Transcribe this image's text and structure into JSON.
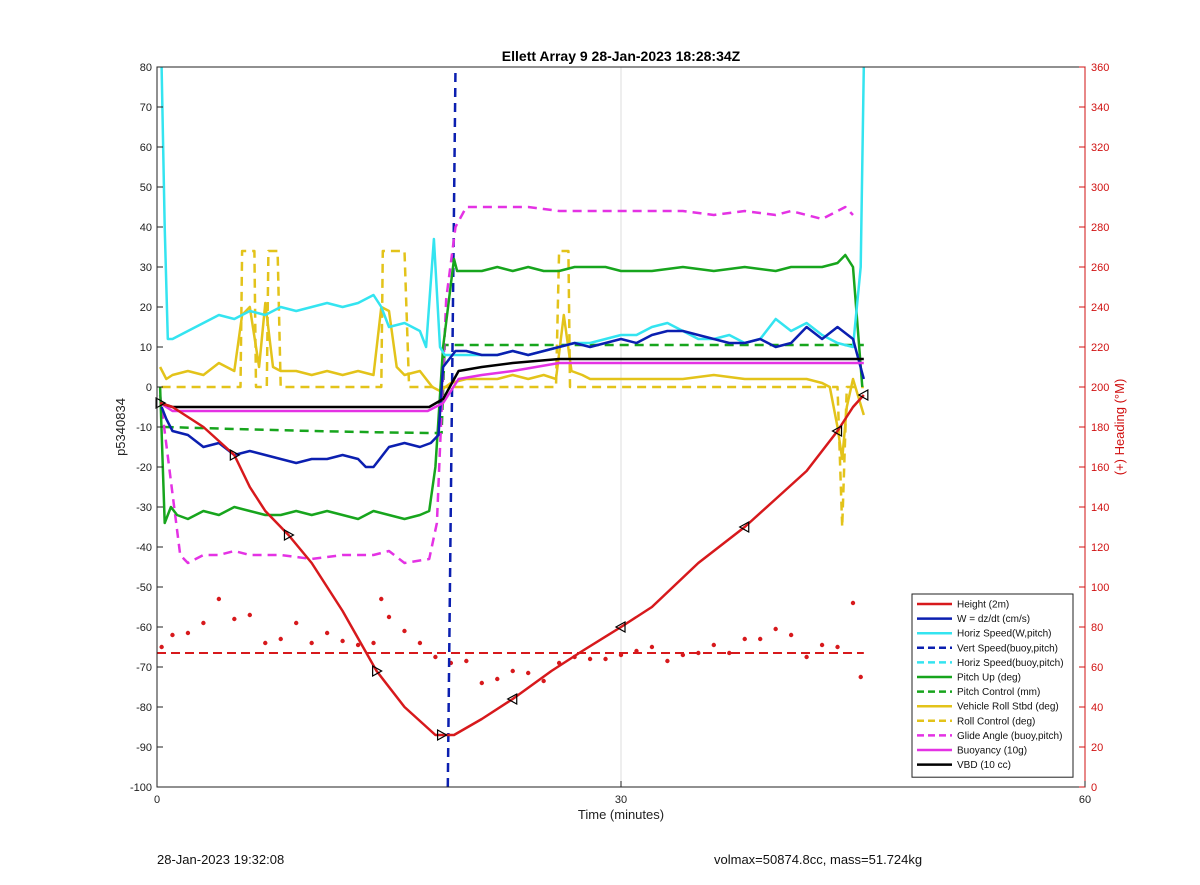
{
  "chart_data": {
    "type": "line",
    "title": "Ellett Array 9 28-Jan-2023 18:28:34Z",
    "xlabel": "Time (minutes)",
    "ylabel": "p5340834",
    "y2label": "(+) Heading (°M)",
    "xlim": [
      0,
      60
    ],
    "ylim": [
      -100,
      80
    ],
    "y2lim": [
      0,
      360
    ],
    "xticks": [
      0,
      30,
      60
    ],
    "yticks": [
      -100,
      -90,
      -80,
      -70,
      -60,
      -50,
      -40,
      -30,
      -20,
      -10,
      0,
      10,
      20,
      30,
      40,
      50,
      60,
      70,
      80
    ],
    "y2ticks": [
      0,
      20,
      40,
      60,
      80,
      100,
      120,
      140,
      160,
      180,
      200,
      220,
      240,
      260,
      280,
      300,
      320,
      340,
      360
    ],
    "grid_x": true,
    "grid_y": false,
    "legend_position": "bottom-right",
    "colors": {
      "red": "#d7191c",
      "blue": "#0b1fb0",
      "cyan": "#34e4f0",
      "green": "#17a51d",
      "yellow": "#e3c31a",
      "magenta": "#e432e4",
      "black": "#000000",
      "axis2": "#d01010"
    },
    "series": [
      {
        "name": "Height (2m)",
        "color": "red",
        "dash": false,
        "axis": "left",
        "markers": "triangles",
        "x": [
          0.2,
          1,
          3,
          5,
          6,
          7,
          8.5,
          10,
          12,
          14.2,
          16,
          18,
          18.4,
          19.2,
          21,
          23,
          25.5,
          27.5,
          30,
          32,
          35,
          38,
          40,
          42,
          44,
          45,
          45.7
        ],
        "y": [
          -4,
          -5,
          -10,
          -17,
          -25,
          -31,
          -37,
          -44,
          -56,
          -71,
          -80,
          -87,
          -87,
          -87,
          -83,
          -78,
          -71,
          -66,
          -60,
          -55,
          -44,
          -35,
          -28,
          -21,
          -11,
          -5,
          -2
        ]
      },
      {
        "name": "W = dz/dt (cm/s)",
        "color": "blue",
        "dash": false,
        "axis": "left",
        "x": [
          0.3,
          0.6,
          1,
          2,
          3,
          4,
          5,
          6,
          7,
          8,
          9,
          10,
          11,
          12,
          13,
          13.5,
          14,
          15,
          16,
          17,
          17.7,
          18.2,
          18.5,
          19.3,
          20,
          21,
          22,
          23,
          24,
          25,
          26,
          27,
          28,
          29,
          30,
          31,
          32,
          33,
          34,
          35,
          36,
          37,
          38,
          39,
          40,
          41,
          42,
          43,
          44,
          45,
          45.7
        ],
        "y": [
          -5,
          -8,
          -11,
          -12,
          -15,
          -14,
          -17,
          -16,
          -17,
          -18,
          -19,
          -18,
          -18,
          -17,
          -18,
          -20,
          -20,
          -15,
          -14,
          -15,
          -14,
          -12,
          5,
          9,
          9,
          8,
          8,
          9,
          8,
          9,
          10,
          11,
          10,
          11,
          12,
          11,
          13,
          14,
          14,
          13,
          12,
          11,
          11,
          12,
          10,
          11,
          15,
          12,
          15,
          12,
          2
        ]
      },
      {
        "name": "Horiz Speed(W,pitch)",
        "color": "cyan",
        "dash": false,
        "axis": "left",
        "x": [
          0.3,
          0.5,
          0.7,
          1,
          2,
          3,
          4,
          5,
          6,
          7,
          8,
          9,
          10,
          11,
          12,
          13,
          14,
          14.5,
          15,
          16,
          17,
          17.4,
          17.9,
          18.3,
          18.6,
          19.3,
          20,
          21,
          22,
          23,
          24,
          25,
          26,
          27,
          28,
          29,
          30,
          31,
          32,
          33,
          34,
          35,
          36,
          37,
          38,
          39,
          40,
          41,
          42,
          43,
          44,
          45,
          45.5,
          45.7
        ],
        "y": [
          80,
          40,
          12,
          12,
          14,
          16,
          18,
          17,
          19,
          18,
          20,
          19,
          20,
          21,
          20,
          21,
          23,
          20,
          15,
          16,
          14,
          10,
          37,
          10,
          8,
          8,
          8,
          8,
          8,
          9,
          8,
          9,
          10,
          11,
          11,
          12,
          13,
          13,
          15,
          16,
          14,
          12,
          12,
          13,
          11,
          12,
          17,
          14,
          16,
          13,
          11,
          10,
          30,
          80
        ]
      },
      {
        "name": "Vert Speed(buoy,pitch)",
        "color": "blue",
        "dash": true,
        "axis": "left",
        "x": [
          18.8,
          19.3
        ],
        "y": [
          -100,
          80
        ]
      },
      {
        "name": "Horiz Speed(buoy,pitch)",
        "color": "cyan",
        "dash": true,
        "axis": "left",
        "x": [],
        "y": []
      },
      {
        "name": "Pitch Up (deg)",
        "color": "green",
        "dash": false,
        "axis": "left",
        "x": [
          0.2,
          0.5,
          0.9,
          1.3,
          2,
          3,
          4,
          5,
          6,
          7,
          8,
          9,
          10,
          11,
          12,
          13,
          14,
          15,
          16,
          17,
          17.6,
          18,
          18.5,
          19.2,
          19.4,
          20,
          21,
          22,
          23,
          24,
          25,
          26,
          27,
          28,
          29,
          30,
          32,
          34,
          36,
          38,
          40,
          41,
          42,
          43,
          44,
          44.5,
          45,
          45.6
        ],
        "y": [
          0,
          -34,
          -30,
          -32,
          -33,
          -31,
          -32,
          -30,
          -31,
          -32,
          -32,
          -31,
          -32,
          -31,
          -32,
          -33,
          -31,
          -32,
          -33,
          -32,
          -31,
          -20,
          10,
          32,
          29,
          29,
          29,
          30,
          29,
          30,
          29,
          29,
          30,
          30,
          30,
          29,
          29,
          30,
          29,
          30,
          29,
          30,
          30,
          30,
          31,
          33,
          30,
          0
        ]
      },
      {
        "name": "Pitch Control (mm)",
        "color": "green",
        "dash": true,
        "axis": "left",
        "x": [
          0.5,
          5,
          10,
          14,
          17.5,
          18.4,
          18.6,
          45.7
        ],
        "y": [
          -10,
          -10.5,
          -11,
          -11.3,
          -11.5,
          -11.5,
          10.5,
          10.5
        ]
      },
      {
        "name": "Vehicle Roll Stbd (deg)",
        "color": "yellow",
        "dash": false,
        "axis": "left",
        "x": [
          0.2,
          0.6,
          1,
          2,
          3,
          4,
          5,
          5.5,
          6,
          6.6,
          7,
          7.5,
          8,
          9,
          10,
          11,
          12,
          13,
          14,
          14.5,
          15,
          15.5,
          16,
          17,
          17.8,
          18.3,
          19,
          20,
          21,
          22,
          23,
          24,
          25,
          25.8,
          26.3,
          26.8,
          27.5,
          28,
          30,
          32,
          34,
          36,
          38,
          40,
          42,
          43,
          43.5,
          44,
          44.3,
          44.6,
          45,
          45.7
        ],
        "y": [
          5,
          2,
          3,
          4,
          3,
          6,
          4,
          18,
          20,
          5,
          21,
          5,
          4,
          4,
          3,
          4,
          3,
          4,
          3,
          20,
          19,
          5,
          3,
          4,
          0,
          -1,
          1,
          2,
          2,
          2,
          3,
          2,
          3,
          2,
          18,
          4,
          3,
          2,
          2,
          2,
          2,
          3,
          2,
          2,
          2,
          1,
          0,
          -10,
          -18,
          -5,
          2,
          -7
        ]
      },
      {
        "name": "Roll Control (deg)",
        "color": "yellow",
        "dash": true,
        "axis": "left",
        "x": [
          0.3,
          2.5,
          5,
          5.4,
          5.5,
          6.3,
          6.4,
          7.1,
          7.2,
          7.8,
          8,
          8.6,
          14.5,
          14.6,
          15,
          15.5,
          16,
          16.3,
          16.5,
          17,
          18,
          25.8,
          26,
          26.6,
          26.7,
          43,
          44,
          44.3,
          44.6,
          45,
          45.7
        ],
        "y": [
          0,
          0,
          0,
          0,
          34,
          34,
          0,
          0,
          34,
          34,
          0,
          0,
          0,
          34,
          34,
          34,
          34,
          0,
          0,
          0,
          0,
          0,
          34,
          34,
          0,
          0,
          0,
          -35,
          0,
          0,
          0
        ]
      },
      {
        "name": "Glide Angle (buoy,pitch)",
        "color": "magenta",
        "dash": true,
        "axis": "left",
        "x": [
          0.2,
          1.5,
          2,
          3,
          4,
          5,
          6,
          8,
          10,
          12,
          14,
          15,
          16,
          17.6,
          18.1,
          18.7,
          19.3,
          20,
          22,
          24,
          26,
          28,
          30,
          32,
          34,
          36,
          38,
          40,
          41,
          42,
          43,
          44,
          44.5,
          45
        ],
        "y": [
          -2,
          -42,
          -44,
          -42,
          -42,
          -41,
          -42,
          -42,
          -43,
          -42,
          -42,
          -41,
          -44,
          -43,
          -34,
          22,
          40,
          45,
          45,
          45,
          44,
          44,
          44,
          44,
          44,
          43,
          44,
          43,
          44,
          43,
          42,
          44,
          45,
          43
        ]
      },
      {
        "name": "Buoyancy (10g)",
        "color": "magenta",
        "dash": false,
        "axis": "left",
        "x": [
          0.2,
          1,
          17.5,
          18.5,
          19.5,
          21,
          23,
          26,
          45.7
        ],
        "y": [
          -4,
          -6,
          -6,
          -4,
          2,
          3,
          4,
          6,
          6
        ]
      },
      {
        "name": "VBD (10 cc)",
        "color": "black",
        "dash": false,
        "axis": "left",
        "x": [
          0.2,
          1,
          17.6,
          18.5,
          19.5,
          21,
          23,
          26,
          45.7
        ],
        "y": [
          -4,
          -5,
          -5,
          -3,
          4,
          5,
          6,
          7,
          7
        ]
      }
    ],
    "heading_mean": {
      "name": "Heading mean",
      "color": "red",
      "dash": true,
      "axis": "right",
      "x": [
        0,
        45.7
      ],
      "y": [
        67,
        67
      ]
    },
    "heading_points": {
      "name": "Heading",
      "color": "red",
      "axis": "right",
      "x": [
        0.3,
        1,
        2,
        3,
        4,
        5,
        6,
        7,
        8,
        9,
        10,
        11,
        12,
        13,
        14,
        14.5,
        15,
        16,
        17,
        18,
        19,
        20,
        21,
        22,
        23,
        24,
        25,
        26,
        27,
        28,
        29,
        30,
        31,
        32,
        33,
        34,
        35,
        36,
        37,
        38,
        39,
        40,
        41,
        42,
        43,
        44,
        45,
        45.5
      ],
      "y": [
        70,
        76,
        77,
        82,
        94,
        84,
        86,
        72,
        74,
        82,
        72,
        77,
        73,
        71,
        72,
        94,
        85,
        78,
        72,
        65,
        62,
        63,
        52,
        54,
        58,
        57,
        53,
        62,
        65,
        64,
        64,
        66,
        68,
        70,
        63,
        66,
        67,
        71,
        67,
        74,
        74,
        79,
        76,
        65,
        71,
        70,
        92,
        55
      ]
    }
  },
  "footer": {
    "left": "28-Jan-2023 19:32:08",
    "right": "volmax=50874.8cc, mass=51.724kg"
  }
}
